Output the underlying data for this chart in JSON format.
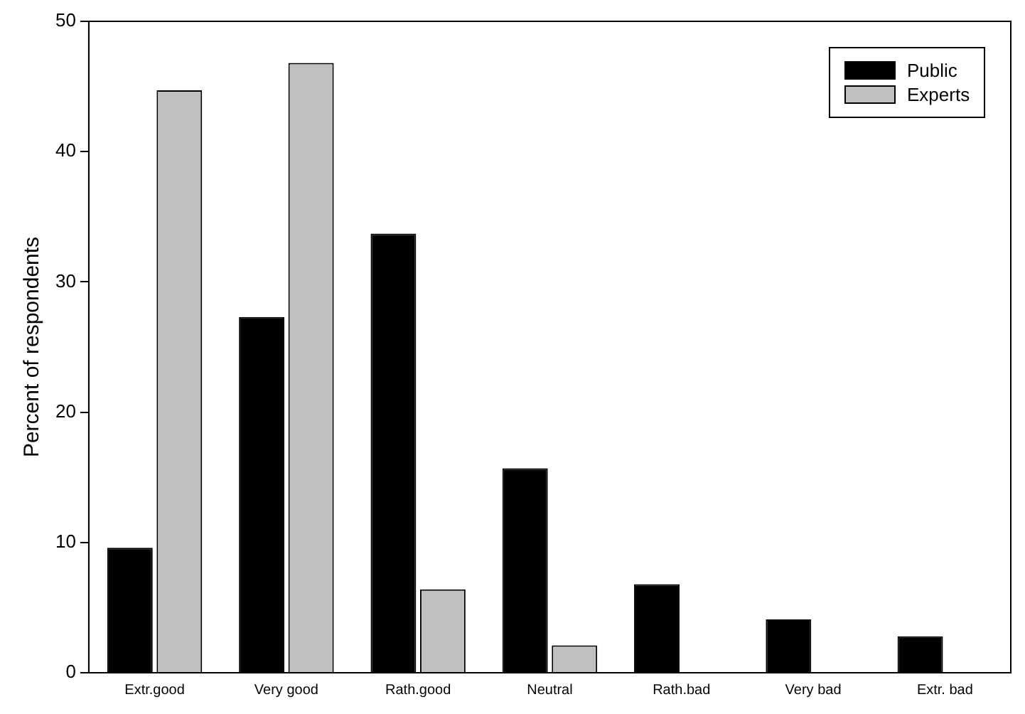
{
  "chart_data": {
    "type": "bar",
    "ylabel": "Percent of respondents",
    "categories": [
      "Extr.good",
      "Very good",
      "Rath.good",
      "Neutral",
      "Rath.bad",
      "Very bad",
      "Extr. bad"
    ],
    "series": [
      {
        "name": "Public",
        "color": "#000000",
        "values": [
          9.6,
          27.3,
          33.7,
          15.7,
          6.8,
          4.1,
          2.8
        ]
      },
      {
        "name": "Experts",
        "color": "#c0c0c0",
        "values": [
          44.7,
          46.8,
          6.4,
          2.1,
          0,
          0,
          0
        ]
      }
    ],
    "ylim": [
      0,
      50
    ],
    "yticks": [
      0,
      10,
      20,
      30,
      40,
      50
    ],
    "grid": false,
    "legend": "top right"
  }
}
